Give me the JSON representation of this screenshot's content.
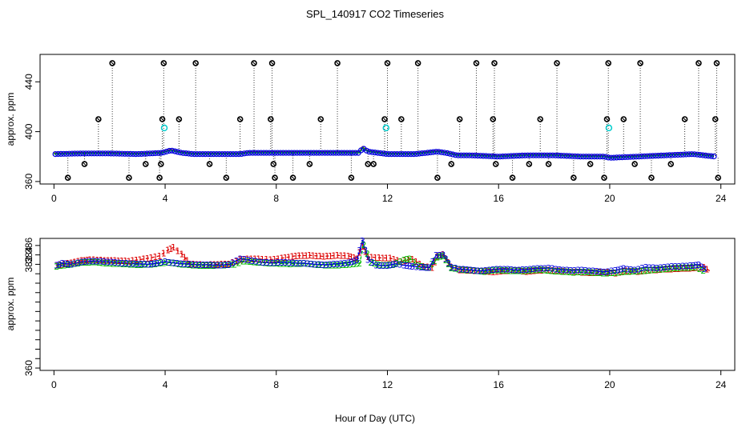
{
  "chart_data": {
    "title": "SPL_140917  CO2 Timeseries",
    "xlabel": "Hour of Day (UTC)",
    "xlim": [
      -0.5,
      24.5
    ],
    "xticks": [
      0,
      4,
      8,
      12,
      16,
      20,
      24
    ],
    "colors": {
      "series1": "#dd0000",
      "series2": "#00bb00",
      "series3": "#0000dd",
      "outlier": "#000000",
      "cyan": "#00cccc"
    },
    "panels": [
      {
        "type": "scatter",
        "ylabel": "approx. ppm",
        "ylim": [
          358,
          462
        ],
        "yticks": [
          360,
          400,
          440
        ],
        "baseline": [
          [
            0,
            382
          ],
          [
            1,
            382.5
          ],
          [
            2,
            382.5
          ],
          [
            3,
            382
          ],
          [
            3.9,
            383
          ],
          [
            4.2,
            385
          ],
          [
            4.6,
            383
          ],
          [
            5,
            382
          ],
          [
            6.7,
            382
          ],
          [
            7,
            383
          ],
          [
            7.8,
            383
          ],
          [
            8.2,
            383
          ],
          [
            9,
            383
          ],
          [
            10,
            383
          ],
          [
            11,
            383
          ],
          [
            11.1,
            387
          ],
          [
            11.3,
            384
          ],
          [
            12,
            382
          ],
          [
            13,
            382
          ],
          [
            13.8,
            384
          ],
          [
            14.1,
            383
          ],
          [
            14.5,
            381
          ],
          [
            15,
            381
          ],
          [
            16,
            380
          ],
          [
            17,
            381
          ],
          [
            18,
            381
          ],
          [
            19,
            380
          ],
          [
            19.8,
            380
          ],
          [
            20,
            379
          ],
          [
            21,
            380
          ],
          [
            22,
            381
          ],
          [
            23,
            382
          ],
          [
            23.8,
            380
          ]
        ],
        "outliers_high": [
          1.6,
          2.1,
          3.9,
          3.95,
          4.5,
          5.1,
          6.7,
          7.2,
          7.8,
          7.85,
          9.6,
          10.2,
          11.9,
          12.0,
          12.5,
          13.1,
          14.6,
          15.2,
          15.8,
          15.85,
          17.5,
          18.1,
          19.9,
          19.95,
          20.5,
          21.1,
          22.7,
          23.2,
          23.8,
          23.85
        ],
        "outlier_high_levels": [
          410,
          455,
          410,
          455,
          410,
          455,
          410,
          455,
          410,
          455,
          410,
          455,
          410,
          455,
          410,
          455,
          410,
          455,
          410,
          455,
          410,
          455,
          410,
          455,
          410,
          455,
          410,
          455,
          410,
          455
        ],
        "outliers_low": [
          0.5,
          1.1,
          2.7,
          3.3,
          3.8,
          3.85,
          5.6,
          6.2,
          7.9,
          7.95,
          8.6,
          9.2,
          10.7,
          11.3,
          11.5,
          13.8,
          14.3,
          15.9,
          16.5,
          17.1,
          17.8,
          18.7,
          19.3,
          19.8,
          20.9,
          21.5,
          22.2,
          23.9
        ],
        "outlier_low_levels": [
          363,
          374,
          363,
          374,
          363,
          374,
          374,
          363,
          374,
          363,
          363,
          374,
          363,
          374,
          374,
          363,
          374,
          374,
          363,
          374,
          374,
          363,
          374,
          363,
          374,
          363,
          374,
          363
        ],
        "cyan_points": [
          [
            3.97,
            403
          ],
          [
            11.95,
            403
          ],
          [
            19.97,
            403
          ]
        ]
      },
      {
        "type": "line",
        "ylabel": "approx. ppm",
        "ylim": [
          359.5,
          387.5
        ],
        "yticks": [
          360,
          362,
          364,
          366,
          368,
          370,
          372,
          374,
          376,
          378,
          380,
          382,
          384,
          386
        ],
        "ytick_labels_shown": [
          360,
          382,
          384,
          386
        ],
        "series": [
          {
            "name": "1",
            "marker": "1",
            "points": [
              [
                0.1,
                381.8
              ],
              [
                0.5,
                382.2
              ],
              [
                1,
                382.8
              ],
              [
                1.3,
                383.0
              ],
              [
                1.7,
                382.9
              ],
              [
                2.2,
                382.8
              ],
              [
                2.7,
                382.7
              ],
              [
                3.1,
                383.0
              ],
              [
                3.5,
                383.4
              ],
              [
                3.8,
                383.8
              ],
              [
                4.1,
                385.0
              ],
              [
                4.3,
                385.6
              ],
              [
                4.6,
                384.2
              ],
              [
                4.9,
                382.1
              ],
              [
                5.4,
                381.9
              ],
              [
                5.9,
                382.0
              ],
              [
                6.3,
                382.1
              ],
              [
                6.7,
                383.0
              ],
              [
                7.1,
                383.2
              ],
              [
                7.5,
                383.1
              ],
              [
                7.8,
                383.0
              ],
              [
                8.2,
                383.3
              ],
              [
                8.7,
                383.8
              ],
              [
                9.2,
                383.9
              ],
              [
                9.7,
                383.7
              ],
              [
                10.2,
                383.9
              ],
              [
                10.6,
                383.8
              ],
              [
                10.9,
                383.2
              ],
              [
                11.1,
                385.8
              ],
              [
                11.3,
                383.6
              ],
              [
                11.7,
                383.4
              ],
              [
                12.1,
                383.3
              ],
              [
                12.5,
                382.6
              ],
              [
                12.9,
                383.1
              ],
              [
                13.3,
                381.6
              ],
              [
                13.6,
                381.3
              ],
              [
                13.8,
                383.7
              ],
              [
                14.0,
                384.1
              ],
              [
                14.3,
                381.5
              ],
              [
                14.6,
                380.8
              ],
              [
                15.0,
                380.7
              ],
              [
                15.4,
                380.6
              ],
              [
                15.8,
                380.4
              ],
              [
                16.2,
                380.6
              ],
              [
                16.6,
                380.7
              ],
              [
                17.0,
                380.5
              ],
              [
                17.4,
                380.7
              ],
              [
                17.8,
                380.8
              ],
              [
                18.2,
                380.6
              ],
              [
                18.6,
                380.4
              ],
              [
                19.0,
                380.3
              ],
              [
                19.4,
                380.2
              ],
              [
                19.8,
                380.4
              ],
              [
                20.2,
                380.1
              ],
              [
                20.6,
                380.6
              ],
              [
                21.0,
                380.5
              ],
              [
                21.4,
                380.7
              ],
              [
                21.8,
                380.9
              ],
              [
                22.2,
                381.0
              ],
              [
                22.6,
                381.1
              ],
              [
                23.0,
                381.2
              ],
              [
                23.4,
                381.4
              ],
              [
                23.6,
                380.6
              ]
            ]
          },
          {
            "name": "2",
            "marker": "2",
            "points": [
              [
                0.1,
                381.6
              ],
              [
                0.5,
                381.9
              ],
              [
                1,
                382.4
              ],
              [
                1.5,
                382.5
              ],
              [
                2,
                382.2
              ],
              [
                2.5,
                382.1
              ],
              [
                3,
                381.9
              ],
              [
                3.5,
                382.0
              ],
              [
                3.8,
                382.2
              ],
              [
                4.1,
                382.4
              ],
              [
                4.5,
                382.1
              ],
              [
                5,
                381.8
              ],
              [
                5.5,
                381.7
              ],
              [
                6,
                381.8
              ],
              [
                6.5,
                382.0
              ],
              [
                6.8,
                382.7
              ],
              [
                7.2,
                382.5
              ],
              [
                7.6,
                382.3
              ],
              [
                8.0,
                382.2
              ],
              [
                8.5,
                382.1
              ],
              [
                9,
                382.2
              ],
              [
                9.5,
                381.9
              ],
              [
                10,
                381.8
              ],
              [
                10.5,
                381.9
              ],
              [
                11.0,
                382.2
              ],
              [
                11.15,
                386.1
              ],
              [
                11.4,
                382.4
              ],
              [
                11.8,
                381.8
              ],
              [
                12.2,
                381.9
              ],
              [
                12.6,
                382.9
              ],
              [
                12.8,
                383.2
              ],
              [
                13.1,
                381.7
              ],
              [
                13.5,
                381.3
              ],
              [
                13.8,
                383.5
              ],
              [
                14.0,
                383.8
              ],
              [
                14.3,
                381.2
              ],
              [
                14.7,
                380.9
              ],
              [
                15.1,
                380.7
              ],
              [
                15.5,
                380.5
              ],
              [
                15.9,
                380.8
              ],
              [
                16.3,
                380.7
              ],
              [
                16.7,
                380.6
              ],
              [
                17.1,
                380.7
              ],
              [
                17.5,
                380.9
              ],
              [
                17.9,
                380.6
              ],
              [
                18.3,
                380.5
              ],
              [
                18.7,
                380.3
              ],
              [
                19.1,
                380.4
              ],
              [
                19.5,
                380.2
              ],
              [
                19.9,
                380.1
              ],
              [
                20.3,
                380.3
              ],
              [
                20.7,
                380.5
              ],
              [
                21.1,
                380.6
              ],
              [
                21.5,
                380.8
              ],
              [
                21.9,
                381.0
              ],
              [
                22.3,
                381.2
              ],
              [
                22.7,
                381.3
              ],
              [
                23.1,
                381.4
              ],
              [
                23.5,
                380.4
              ]
            ]
          },
          {
            "name": "3",
            "marker": "3",
            "points": [
              [
                0.1,
                381.8
              ],
              [
                0.3,
                382.2
              ],
              [
                0.6,
                382.0
              ],
              [
                1,
                382.5
              ],
              [
                1.4,
                382.7
              ],
              [
                1.8,
                382.6
              ],
              [
                2.2,
                382.4
              ],
              [
                2.6,
                382.2
              ],
              [
                3.0,
                382.1
              ],
              [
                3.4,
                382.0
              ],
              [
                3.7,
                382.2
              ],
              [
                4.0,
                382.6
              ],
              [
                4.3,
                382.3
              ],
              [
                4.7,
                382.1
              ],
              [
                5.1,
                381.9
              ],
              [
                5.5,
                381.9
              ],
              [
                5.9,
                381.8
              ],
              [
                6.3,
                381.9
              ],
              [
                6.7,
                383.2
              ],
              [
                7.0,
                382.9
              ],
              [
                7.4,
                382.5
              ],
              [
                7.8,
                382.3
              ],
              [
                8.2,
                382.4
              ],
              [
                8.6,
                382.3
              ],
              [
                9.0,
                382.2
              ],
              [
                9.4,
                382.0
              ],
              [
                9.8,
                381.9
              ],
              [
                10.2,
                382.1
              ],
              [
                10.6,
                382.3
              ],
              [
                10.9,
                382.9
              ],
              [
                11.1,
                387.0
              ],
              [
                11.3,
                383.0
              ],
              [
                11.6,
                381.8
              ],
              [
                12.0,
                381.7
              ],
              [
                12.3,
                382.1
              ],
              [
                12.6,
                381.8
              ],
              [
                12.9,
                381.6
              ],
              [
                13.2,
                381.4
              ],
              [
                13.5,
                381.3
              ],
              [
                13.75,
                383.9
              ],
              [
                14.0,
                384.0
              ],
              [
                14.3,
                381.4
              ],
              [
                14.6,
                381.0
              ],
              [
                15.0,
                380.8
              ],
              [
                15.4,
                380.6
              ],
              [
                15.8,
                380.9
              ],
              [
                16.2,
                381.0
              ],
              [
                16.6,
                380.8
              ],
              [
                17.0,
                380.9
              ],
              [
                17.4,
                381.1
              ],
              [
                17.8,
                381.2
              ],
              [
                18.2,
                380.9
              ],
              [
                18.6,
                380.7
              ],
              [
                19.0,
                380.8
              ],
              [
                19.4,
                380.6
              ],
              [
                19.8,
                380.4
              ],
              [
                20.2,
                380.7
              ],
              [
                20.5,
                381.1
              ],
              [
                20.9,
                380.8
              ],
              [
                21.3,
                381.4
              ],
              [
                21.7,
                381.2
              ],
              [
                22.1,
                381.5
              ],
              [
                22.5,
                381.6
              ],
              [
                22.9,
                381.7
              ],
              [
                23.2,
                381.9
              ],
              [
                23.5,
                380.6
              ]
            ]
          }
        ]
      }
    ]
  }
}
